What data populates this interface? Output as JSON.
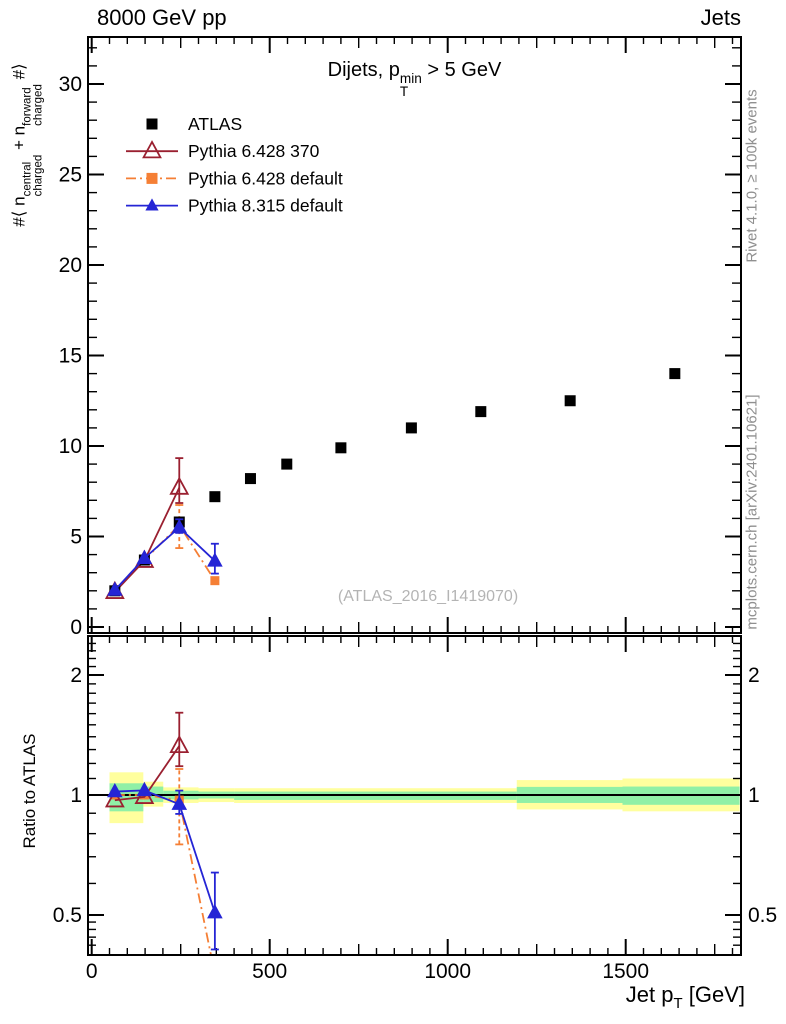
{
  "header": {
    "left": "8000 GeV pp",
    "right": "Jets"
  },
  "title": {
    "prefix": "Dijets, p",
    "sup": "min",
    "sub": "T",
    "suffix": " > 5 GeV"
  },
  "axis_labels": {
    "y_prefix": "#⟨ n",
    "y_sup1": "central",
    "y_sub1": "charged",
    "y_mid": " + n",
    "y_sup2": "forward",
    "y_sub2": "charged",
    "y_suffix": " #⟩",
    "ratio": "Ratio to ATLAS",
    "x_prefix": "Jet p",
    "x_sub": "T",
    "x_suffix": " [GeV]"
  },
  "side_notes": {
    "top_right": "Rivet 4.1.0, ≥ 100k events",
    "bottom_right": "mcplots.cern.ch [arXiv:2401.10621]"
  },
  "watermark": {
    "text": "(ATLAS_2016_I1419070)"
  },
  "colors": {
    "frame": "#000000",
    "band_yellow": "#ffff9e",
    "band_green": "#90f0a6",
    "reference_line": "#000000",
    "note_gray": "#909090",
    "watermark_gray": "#b4b4b4"
  },
  "chart_data": {
    "type": "line",
    "title": "Dijets, pT_min > 5 GeV",
    "x_axis": {
      "title": "Jet pT [GeV]",
      "range": [
        0,
        1820
      ],
      "major_ticks": [
        0,
        500,
        1000,
        1500
      ],
      "major_tick_labels": [
        "0",
        "500",
        "1000",
        "1500"
      ],
      "medium_ticks": [
        250,
        750,
        1250,
        1750
      ],
      "minor_step": 50
    },
    "main_y_axis": {
      "title": "#< n_charged^central + n_charged^forward #>",
      "range": [
        0,
        32.6
      ],
      "major_ticks": [
        0,
        5,
        10,
        15,
        20,
        25,
        30
      ],
      "major_tick_labels": [
        "0",
        "5",
        "10",
        "15",
        "20",
        "25",
        "30"
      ],
      "minor_step": 1
    },
    "ratio_y_axis": {
      "title": "Ratio to ATLAS",
      "scale": "log",
      "range": [
        0.4,
        2.5
      ],
      "major_ticks": [
        0.5,
        1,
        2
      ],
      "major_tick_labels": [
        "0.5",
        "1",
        "2"
      ],
      "minor_ticks": [
        0.42,
        0.44,
        0.46,
        0.48,
        0.6,
        0.7,
        0.8,
        0.9,
        1.1,
        1.2,
        1.3,
        1.4,
        1.5,
        1.6,
        1.7,
        1.8,
        1.9,
        2.1,
        2.2,
        2.3,
        2.4
      ]
    },
    "legend_position": "top-left",
    "series": [
      {
        "name": "ATLAS",
        "marker": "square-filled",
        "color": "#000000",
        "line": "none",
        "x": [
          65,
          148,
          246,
          346,
          446,
          548,
          700,
          898,
          1093,
          1344,
          1638
        ],
        "y": [
          2.0,
          3.7,
          5.8,
          7.2,
          8.2,
          9.0,
          9.9,
          11.0,
          11.9,
          12.5,
          14.0
        ]
      },
      {
        "name": "Pythia 6.428 370",
        "marker": "triangle-open",
        "color": "#9a2030",
        "line": "solid",
        "x": [
          65,
          148,
          246
        ],
        "y": [
          1.94,
          3.66,
          7.7
        ],
        "yerr_lo": [
          null,
          null,
          6.85
        ],
        "yerr_hi": [
          null,
          null,
          9.33
        ]
      },
      {
        "name": "Pythia 6.428 default",
        "marker": "square-filled",
        "color": "#f57f35",
        "line": "dashdot",
        "x": [
          65,
          148,
          246,
          346
        ],
        "y": [
          2.0,
          3.7,
          5.63,
          2.56
        ],
        "yerr_lo": [
          null,
          null,
          4.36,
          2.4
        ],
        "yerr_hi": [
          null,
          null,
          6.74,
          2.72
        ]
      },
      {
        "name": "Pythia 8.315 default",
        "marker": "triangle-filled",
        "color": "#2525d5",
        "line": "solid",
        "x": [
          65,
          148,
          246,
          346
        ],
        "y": [
          2.04,
          3.8,
          5.5,
          3.65
        ],
        "yerr_lo": [
          null,
          null,
          5.2,
          2.95
        ],
        "yerr_hi": [
          null,
          null,
          5.95,
          4.6
        ]
      }
    ],
    "ratio_reference": 1,
    "ratio_bands": [
      {
        "x0": 50,
        "x1": 145,
        "yellow": [
          0.85,
          1.14
        ],
        "green": [
          0.91,
          1.07
        ]
      },
      {
        "x0": 145,
        "x1": 201,
        "yellow": [
          0.935,
          1.08
        ],
        "green": [
          0.96,
          1.05
        ]
      },
      {
        "x0": 201,
        "x1": 300,
        "yellow": [
          0.955,
          1.045
        ],
        "green": [
          0.975,
          1.025
        ]
      },
      {
        "x0": 300,
        "x1": 400,
        "yellow": [
          0.96,
          1.04
        ],
        "green": [
          0.98,
          1.02
        ]
      },
      {
        "x0": 400,
        "x1": 1194,
        "yellow": [
          0.955,
          1.04
        ],
        "green": [
          0.972,
          1.02
        ]
      },
      {
        "x0": 1194,
        "x1": 1491,
        "yellow": [
          0.92,
          1.09
        ],
        "green": [
          0.955,
          1.048
        ]
      },
      {
        "x0": 1491,
        "x1": 1820,
        "yellow": [
          0.91,
          1.1
        ],
        "green": [
          0.945,
          1.05
        ]
      }
    ]
  }
}
